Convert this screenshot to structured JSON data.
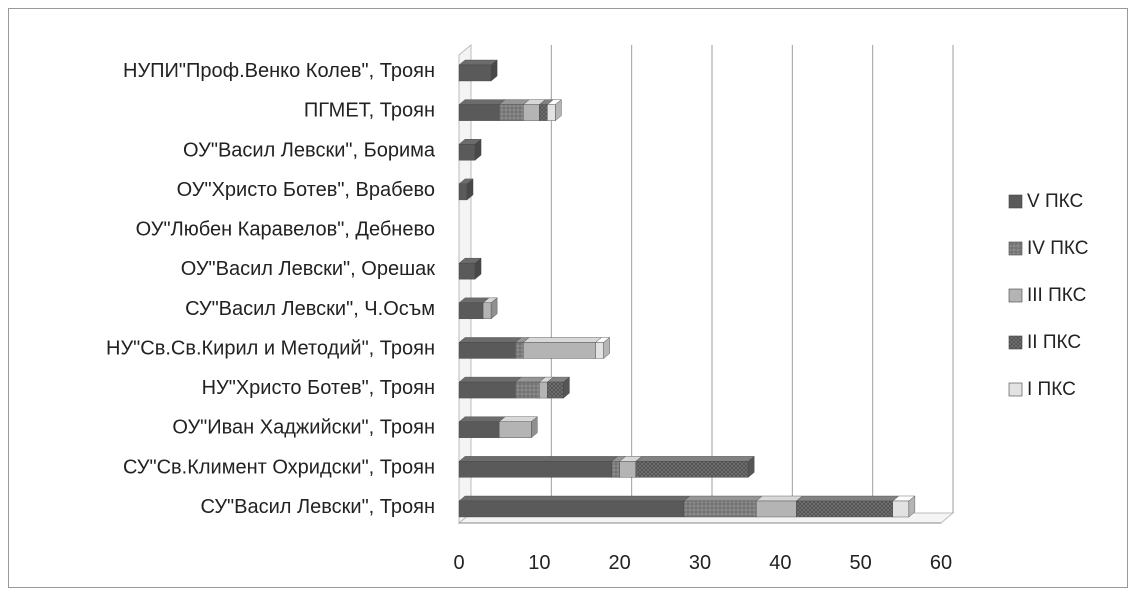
{
  "chart_data": {
    "type": "bar",
    "orientation": "horizontal",
    "stacked": true,
    "style": "3d",
    "categories": [
      "СУ\"Васил Левски\", Троян",
      "СУ\"Св.Климент Охридски\", Троян",
      "ОУ\"Иван Хаджийски\", Троян",
      "НУ\"Христо Ботев\", Троян",
      "НУ\"Св.Св.Кирил и Методий\", Троян",
      "СУ\"Васил Левски\", Ч.Осъм",
      "ОУ\"Васил Левски\", Орешак",
      "ОУ\"Любен Каравелов\", Дебнево",
      "ОУ\"Христо Ботев\", Врабево",
      "ОУ\"Васил Левски\", Борима",
      "ПГМЕТ, Троян",
      "НУПИ\"Проф.Венко Колев\", Троян"
    ],
    "series": [
      {
        "name": "V ПКС",
        "values": [
          28,
          19,
          5,
          7,
          7,
          3,
          2,
          0,
          1,
          2,
          5,
          4
        ]
      },
      {
        "name": "IV ПКС",
        "values": [
          9,
          1,
          0,
          3,
          1,
          0,
          0,
          0,
          0,
          0,
          3,
          0
        ]
      },
      {
        "name": "III ПКС",
        "values": [
          5,
          2,
          4,
          1,
          9,
          1,
          0,
          0,
          0,
          0,
          2,
          0
        ]
      },
      {
        "name": "II ПКС",
        "values": [
          12,
          14,
          0,
          2,
          0,
          0,
          0,
          0,
          0,
          0,
          1,
          0
        ]
      },
      {
        "name": "I ПКС",
        "values": [
          2,
          0,
          0,
          0,
          1,
          0,
          0,
          0,
          0,
          0,
          1,
          0
        ]
      }
    ],
    "xlim": [
      0,
      60
    ],
    "xticks": [
      "0",
      "10",
      "20",
      "30",
      "40",
      "50",
      "60"
    ],
    "grid": "vertical",
    "legend_position": "right",
    "colors": {
      "V ПКС": "#5a5a5a",
      "IV ПКС": "#7d7d7d",
      "III ПКС": "#b4b4b4",
      "II ПКС": "#6c6c6c",
      "I ПКС": "#e2e2e2"
    }
  }
}
